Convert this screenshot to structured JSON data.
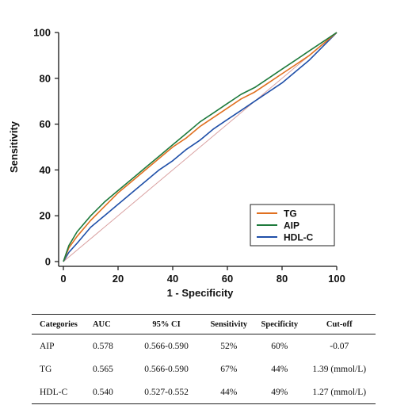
{
  "chart_data": {
    "type": "line",
    "title": "",
    "xlabel": "1 - Specificity",
    "ylabel": "Sensitivity",
    "xlim": [
      0,
      100
    ],
    "ylim": [
      0,
      100
    ],
    "xticks": [
      "0",
      "20",
      "40",
      "60",
      "80",
      "100"
    ],
    "yticks": [
      "0",
      "20",
      "40",
      "60",
      "80",
      "100"
    ],
    "grid": false,
    "legend_position": "bottom-right",
    "reference_line": {
      "x": [
        0,
        100
      ],
      "y": [
        0,
        100
      ],
      "color": "#d9a0a0"
    },
    "x": [
      0,
      2,
      5,
      10,
      15,
      20,
      25,
      30,
      35,
      40,
      45,
      50,
      55,
      60,
      65,
      70,
      75,
      80,
      85,
      90,
      95,
      100
    ],
    "series": [
      {
        "name": "TG",
        "color": "#e07020",
        "values": [
          0,
          6,
          11,
          18,
          24,
          30,
          35,
          40,
          45,
          50,
          54,
          59,
          63,
          67,
          71,
          74,
          78,
          82,
          86,
          90,
          95,
          100
        ]
      },
      {
        "name": "AIP",
        "color": "#1e7a3c",
        "values": [
          0,
          7,
          13,
          20,
          26,
          31,
          36,
          41,
          46,
          51,
          56,
          61,
          65,
          69,
          73,
          76,
          80,
          84,
          88,
          92,
          96,
          100
        ]
      },
      {
        "name": "HDL-C",
        "color": "#1f4fa8",
        "values": [
          0,
          4,
          8,
          15,
          20,
          25,
          30,
          35,
          40,
          44,
          49,
          53,
          58,
          62,
          66,
          70,
          74,
          78,
          83,
          88,
          94,
          100
        ]
      }
    ]
  },
  "table": {
    "headers": [
      "Categories",
      "AUC",
      "95% CI",
      "Sensitivity",
      "Specificity",
      "Cut-off"
    ],
    "rows": [
      [
        "AIP",
        "0.578",
        "0.566-0.590",
        "52%",
        "60%",
        "-0.07"
      ],
      [
        "TG",
        "0.565",
        "0.566-0.590",
        "67%",
        "44%",
        "1.39 (mmol/L)"
      ],
      [
        "HDL-C",
        "0.540",
        "0.527-0.552",
        "44%",
        "49%",
        "1.27 (mmol/L)"
      ]
    ]
  }
}
